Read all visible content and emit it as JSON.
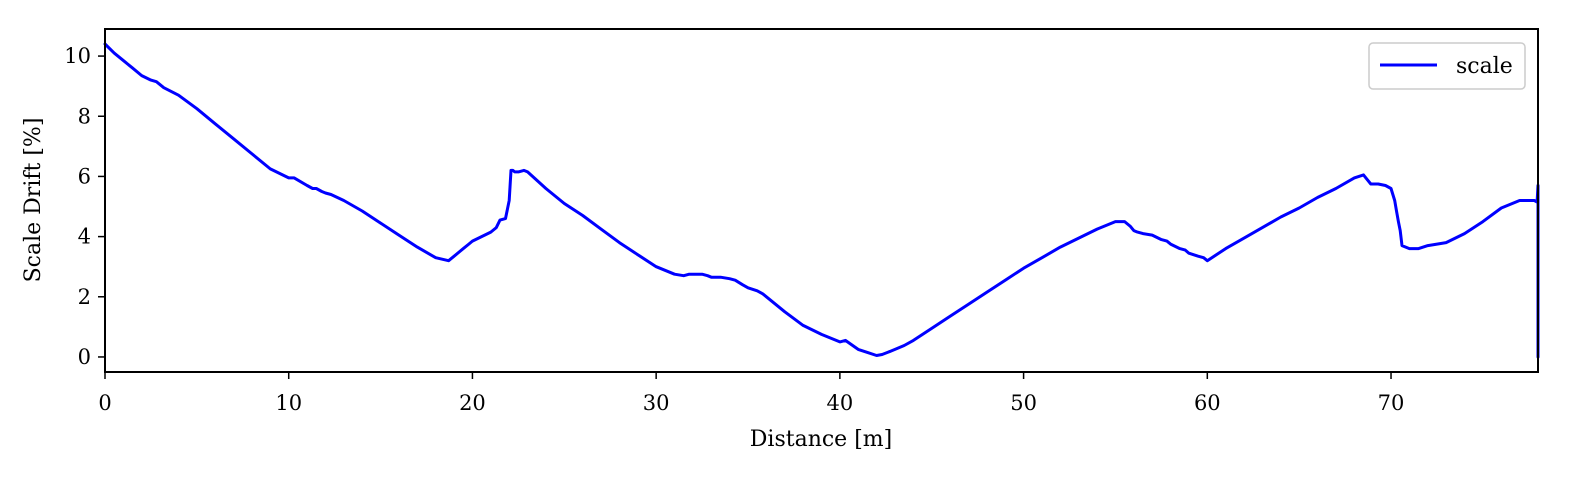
{
  "chart_data": {
    "type": "line",
    "title": "",
    "xlabel": "Distance [m]",
    "ylabel": "Scale Drift [%]",
    "xlim": [
      0,
      78
    ],
    "ylim": [
      -0.5,
      10.9
    ],
    "xticks": [
      0,
      10,
      20,
      30,
      40,
      50,
      60,
      70
    ],
    "yticks": [
      0,
      2,
      4,
      6,
      8,
      10
    ],
    "grid": false,
    "legend": {
      "position": "top-right",
      "entries": [
        "scale"
      ]
    },
    "series": [
      {
        "name": "scale",
        "color": "#0000ff",
        "x": [
          0,
          0.5,
          1.0,
          1.5,
          2.0,
          2.5,
          2.8,
          3.2,
          4.0,
          5.0,
          6.0,
          7.0,
          8.0,
          9.0,
          10.0,
          10.3,
          11.0,
          11.3,
          11.5,
          11.8,
          12.0,
          12.3,
          13.0,
          14.0,
          15.0,
          16.0,
          17.0,
          18.0,
          18.7,
          19.0,
          19.3,
          19.5,
          19.8,
          20.0,
          20.5,
          21.0,
          21.3,
          21.5,
          21.8,
          22.0,
          22.1,
          22.2,
          22.3,
          22.5,
          22.8,
          23.0,
          24.0,
          25.0,
          26.0,
          27.0,
          28.0,
          29.0,
          30.0,
          31.0,
          31.5,
          31.8,
          32.0,
          32.5,
          32.8,
          33.0,
          33.5,
          34.0,
          34.3,
          34.7,
          35.0,
          35.5,
          35.8,
          36.0,
          36.5,
          37.0,
          38.0,
          39.0,
          40.0,
          40.3,
          41.0,
          41.5,
          42.0,
          42.3,
          42.6,
          43.0,
          43.5,
          44.0,
          45.0,
          46.0,
          47.0,
          48.0,
          49.0,
          50.0,
          51.0,
          52.0,
          53.0,
          54.0,
          55.0,
          55.5,
          55.8,
          56.0,
          56.2,
          56.5,
          57.0,
          57.5,
          57.8,
          58.0,
          58.5,
          58.8,
          59.0,
          59.5,
          59.8,
          60.0,
          61.0,
          62.0,
          63.0,
          64.0,
          65.0,
          66.0,
          67.0,
          68.0,
          68.5,
          68.7,
          68.9,
          69.3,
          69.7,
          70.0,
          70.2,
          70.3,
          70.4,
          70.5,
          70.6,
          71.0,
          71.5,
          72.0,
          72.5,
          73.0,
          74.0,
          75.0,
          76.0,
          77.0,
          77.5,
          77.8,
          77.95,
          78.0,
          78.0,
          78.0
        ],
        "y": [
          10.4,
          10.1,
          9.85,
          9.6,
          9.35,
          9.2,
          9.15,
          8.95,
          8.7,
          8.25,
          7.75,
          7.25,
          6.75,
          6.25,
          5.95,
          5.95,
          5.7,
          5.6,
          5.6,
          5.5,
          5.45,
          5.4,
          5.2,
          4.85,
          4.45,
          4.05,
          3.65,
          3.3,
          3.2,
          3.35,
          3.5,
          3.6,
          3.75,
          3.85,
          4.0,
          4.15,
          4.3,
          4.55,
          4.6,
          5.2,
          6.2,
          6.2,
          6.15,
          6.15,
          6.2,
          6.15,
          5.6,
          5.1,
          4.7,
          4.25,
          3.8,
          3.4,
          3.0,
          2.75,
          2.7,
          2.75,
          2.75,
          2.75,
          2.7,
          2.65,
          2.65,
          2.6,
          2.55,
          2.4,
          2.3,
          2.2,
          2.1,
          2.0,
          1.75,
          1.5,
          1.05,
          0.75,
          0.5,
          0.55,
          0.25,
          0.15,
          0.05,
          0.08,
          0.15,
          0.25,
          0.38,
          0.55,
          0.95,
          1.35,
          1.75,
          2.15,
          2.55,
          2.95,
          3.3,
          3.65,
          3.95,
          4.25,
          4.5,
          4.5,
          4.35,
          4.2,
          4.15,
          4.1,
          4.05,
          3.9,
          3.85,
          3.75,
          3.6,
          3.55,
          3.45,
          3.35,
          3.3,
          3.2,
          3.6,
          3.95,
          4.3,
          4.65,
          4.95,
          5.3,
          5.6,
          5.95,
          6.05,
          5.9,
          5.75,
          5.75,
          5.7,
          5.6,
          5.2,
          4.85,
          4.5,
          4.2,
          3.7,
          3.6,
          3.6,
          3.7,
          3.75,
          3.8,
          4.1,
          4.5,
          4.95,
          5.2,
          5.2,
          5.2,
          5.15,
          5.7,
          3.0,
          0.0
        ]
      }
    ]
  }
}
